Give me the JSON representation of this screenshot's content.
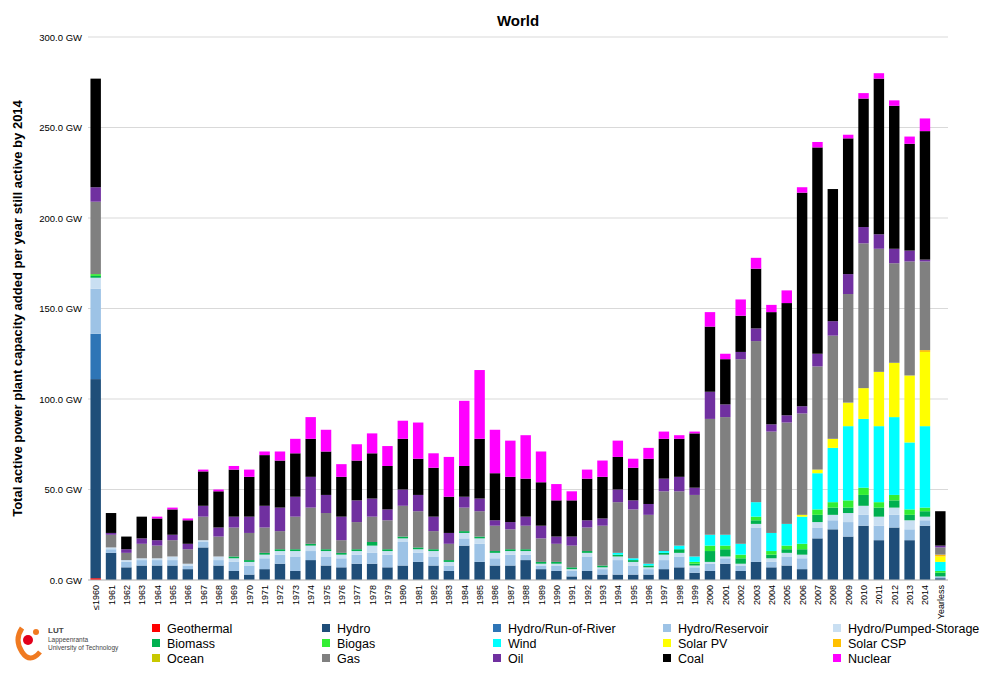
{
  "chart_data": {
    "type": "bar",
    "stacked": true,
    "grid": true,
    "legend": "bottom",
    "title": "World",
    "y_label": "Total active power plant capacity added per year still active by 2014",
    "ylim": [
      0,
      300
    ],
    "yticks": [
      {
        "value": 0,
        "label": "0.0 GW"
      },
      {
        "value": 50,
        "label": "50.0 GW"
      },
      {
        "value": 100,
        "label": "100.0 GW"
      },
      {
        "value": 150,
        "label": "150.0 GW"
      },
      {
        "value": 200,
        "label": "200.0 GW"
      },
      {
        "value": 250,
        "label": "250.0 GW"
      },
      {
        "value": 300,
        "label": "300.0 GW"
      }
    ],
    "categories": [
      "≤1960",
      "1961",
      "1962",
      "1963",
      "1964",
      "1965",
      "1966",
      "1967",
      "1968",
      "1969",
      "1970",
      "1971",
      "1972",
      "1973",
      "1974",
      "1975",
      "1976",
      "1977",
      "1978",
      "1979",
      "1980",
      "1981",
      "1982",
      "1983",
      "1984",
      "1985",
      "1986",
      "1987",
      "1988",
      "1989",
      "1990",
      "1991",
      "1992",
      "1993",
      "1994",
      "1995",
      "1996",
      "1997",
      "1998",
      "1999",
      "2000",
      "2001",
      "2002",
      "2003",
      "2004",
      "2005",
      "2006",
      "2007",
      "2008",
      "2009",
      "2010",
      "2011",
      "2012",
      "2013",
      "2014",
      "Yearless"
    ],
    "series": [
      {
        "name": "Geothermal",
        "color": "#ff0000",
        "values": [
          1,
          0,
          0,
          0,
          0,
          0,
          0,
          0,
          0,
          0,
          0,
          0,
          0,
          0,
          0,
          0,
          0,
          0,
          0,
          0,
          0,
          0,
          0,
          0,
          0,
          0,
          0,
          0,
          0,
          0,
          0,
          0,
          0,
          0,
          0,
          0,
          0,
          0,
          0,
          0,
          0,
          0,
          0,
          0,
          0,
          0,
          0,
          0,
          0,
          0,
          0,
          0,
          0,
          0,
          0,
          0
        ]
      },
      {
        "name": "Hydro",
        "color": "#1f4e79",
        "values": [
          110,
          15,
          7,
          8,
          8,
          8,
          6,
          18,
          8,
          5,
          3,
          6,
          9,
          5,
          11,
          8,
          7,
          9,
          9,
          7,
          8,
          10,
          8,
          5,
          19,
          10,
          8,
          8,
          11,
          6,
          5,
          2,
          5,
          3,
          3,
          3,
          3,
          6,
          7,
          4,
          5,
          9,
          5,
          10,
          7,
          8,
          6,
          23,
          28,
          24,
          30,
          22,
          29,
          22,
          30,
          1
        ]
      },
      {
        "name": "Hydro/Run-of-River",
        "color": "#2e75b6",
        "values": [
          25,
          0,
          0,
          0,
          0,
          0,
          0,
          0,
          0,
          0,
          0,
          0,
          0,
          0,
          0,
          0,
          0,
          0,
          0,
          0,
          0,
          0,
          0,
          0,
          0,
          0,
          0,
          0,
          0,
          0,
          0,
          0,
          0,
          0,
          0,
          0,
          0,
          0,
          0,
          0,
          0,
          0,
          0,
          0,
          0,
          0,
          0,
          0,
          0,
          0,
          0,
          0,
          0,
          0,
          0,
          0
        ]
      },
      {
        "name": "Hydro/Reservoir",
        "color": "#9dc3e6",
        "values": [
          25,
          2,
          3,
          3,
          3,
          3,
          2,
          3,
          3,
          5,
          5,
          6,
          5,
          8,
          5,
          5,
          5,
          5,
          6,
          7,
          13,
          5,
          5,
          3,
          4,
          10,
          4,
          6,
          3,
          2,
          3,
          3,
          8,
          3,
          8,
          5,
          3,
          5,
          6,
          3,
          4,
          3,
          3,
          19,
          3,
          5,
          6,
          6,
          5,
          8,
          6,
          8,
          7,
          6,
          3,
          1
        ]
      },
      {
        "name": "Hydro/Pumped-Storage",
        "color": "#c9dff2",
        "values": [
          6,
          1,
          1,
          1,
          1,
          2,
          1,
          1,
          2,
          2,
          2,
          2,
          2,
          3,
          3,
          3,
          2,
          2,
          4,
          2,
          2,
          2,
          3,
          2,
          3,
          3,
          3,
          2,
          2,
          1,
          1,
          1,
          2,
          1,
          2,
          2,
          1,
          3,
          2,
          1,
          1,
          1,
          1,
          2,
          2,
          2,
          2,
          3,
          3,
          5,
          5,
          5,
          4,
          5,
          2,
          0
        ]
      },
      {
        "name": "Biomass",
        "color": "#00b050",
        "values": [
          1,
          0,
          0,
          0,
          0,
          0,
          0,
          0,
          0,
          1,
          1,
          1,
          1,
          1,
          1,
          1,
          1,
          1,
          2,
          1,
          1,
          1,
          1,
          1,
          1,
          1,
          1,
          1,
          1,
          1,
          1,
          1,
          1,
          1,
          1,
          1,
          1,
          1,
          2,
          1,
          6,
          4,
          3,
          2,
          2,
          2,
          3,
          4,
          4,
          3,
          6,
          5,
          4,
          3,
          3,
          2
        ]
      },
      {
        "name": "Biogas",
        "color": "#33ee33",
        "values": [
          1,
          0,
          0,
          0,
          0,
          0,
          0,
          0,
          0,
          0,
          0,
          0,
          0,
          0,
          0,
          0,
          0,
          0,
          0,
          0,
          0,
          0,
          0,
          0,
          0,
          0,
          0,
          0,
          0,
          0,
          0,
          0,
          0,
          0,
          0,
          0,
          0,
          0,
          0,
          1,
          3,
          2,
          2,
          2,
          2,
          2,
          3,
          3,
          3,
          4,
          4,
          3,
          3,
          3,
          2,
          1
        ]
      },
      {
        "name": "Wind",
        "color": "#00ffff",
        "values": [
          0,
          0,
          0,
          0,
          0,
          0,
          0,
          0,
          0,
          0,
          0,
          0,
          0,
          0,
          0,
          0,
          0,
          0,
          0,
          0,
          0,
          0,
          0,
          0,
          0,
          0,
          0,
          0,
          0,
          0,
          0,
          0,
          0,
          0,
          1,
          1,
          1,
          1,
          2,
          3,
          6,
          6,
          6,
          8,
          10,
          12,
          15,
          20,
          30,
          41,
          38,
          42,
          43,
          37,
          45,
          5
        ]
      },
      {
        "name": "Solar PV",
        "color": "#ffff00",
        "values": [
          0,
          0,
          0,
          0,
          0,
          0,
          0,
          0,
          0,
          0,
          0,
          0,
          0,
          0,
          0,
          0,
          0,
          0,
          0,
          0,
          0,
          0,
          0,
          0,
          0,
          0,
          0,
          0,
          0,
          0,
          0,
          0,
          0,
          0,
          0,
          0,
          0,
          0,
          0,
          0,
          0,
          0,
          0,
          0,
          0,
          0,
          1,
          2,
          5,
          13,
          17,
          30,
          30,
          37,
          41,
          3
        ]
      },
      {
        "name": "Solar CSP",
        "color": "#ffc000",
        "values": [
          0,
          0,
          0,
          0,
          0,
          0,
          0,
          0,
          0,
          0,
          0,
          0,
          0,
          0,
          0,
          0,
          0,
          0,
          0,
          0,
          0,
          0,
          0,
          0,
          0,
          0,
          0,
          0,
          0,
          0,
          0,
          0,
          0,
          0,
          0,
          0,
          0,
          0,
          0,
          0,
          0,
          0,
          0,
          0,
          0,
          0,
          0,
          0,
          0,
          0,
          0,
          0,
          0,
          0,
          1,
          1
        ]
      },
      {
        "name": "Ocean",
        "color": "#c8c800",
        "values": [
          0,
          0,
          0,
          0,
          0,
          0,
          0,
          0,
          0,
          0,
          0,
          0,
          0,
          0,
          0,
          0,
          0,
          0,
          0,
          0,
          0,
          0,
          0,
          0,
          0,
          0,
          0,
          0,
          0,
          0,
          0,
          0,
          0,
          0,
          0,
          0,
          0,
          0,
          0,
          0,
          0,
          0,
          0,
          0,
          0,
          0,
          0,
          0,
          0,
          0,
          0,
          0,
          0,
          0,
          0,
          0
        ]
      },
      {
        "name": "Gas",
        "color": "#808080",
        "values": [
          40,
          7,
          4,
          8,
          7,
          9,
          8,
          13,
          11,
          16,
          15,
          14,
          10,
          18,
          20,
          20,
          7,
          15,
          14,
          16,
          17,
          20,
          10,
          9,
          13,
          14,
          14,
          11,
          13,
          13,
          10,
          12,
          13,
          22,
          28,
          27,
          27,
          33,
          30,
          34,
          64,
          65,
          102,
          89,
          56,
          56,
          56,
          57,
          57,
          60,
          80,
          68,
          55,
          63,
          49,
          4
        ]
      },
      {
        "name": "Oil",
        "color": "#7030a0",
        "values": [
          8,
          1,
          2,
          3,
          3,
          3,
          3,
          6,
          5,
          6,
          9,
          12,
          13,
          11,
          17,
          10,
          13,
          12,
          10,
          6,
          9,
          9,
          8,
          6,
          6,
          7,
          3,
          4,
          5,
          7,
          4,
          5,
          4,
          4,
          7,
          5,
          6,
          7,
          8,
          4,
          15,
          7,
          4,
          7,
          4,
          4,
          4,
          7,
          8,
          11,
          9,
          8,
          8,
          6,
          1,
          1
        ]
      },
      {
        "name": "Coal",
        "color": "#000000",
        "values": [
          60,
          11,
          7,
          12,
          12,
          14,
          13,
          19,
          20,
          26,
          22,
          28,
          26,
          24,
          21,
          24,
          22,
          22,
          25,
          24,
          28,
          20,
          27,
          20,
          17,
          33,
          26,
          25,
          21,
          24,
          20,
          20,
          23,
          23,
          18,
          18,
          25,
          22,
          21,
          30,
          36,
          25,
          20,
          33,
          62,
          62,
          118,
          114,
          73,
          75,
          71,
          86,
          79,
          59,
          71,
          19
        ]
      },
      {
        "name": "Nuclear",
        "color": "#ff00ff",
        "values": [
          0,
          0,
          0,
          0,
          1,
          1,
          1,
          1,
          1,
          2,
          4,
          2,
          5,
          8,
          12,
          12,
          7,
          9,
          11,
          11,
          10,
          20,
          8,
          22,
          36,
          38,
          24,
          20,
          24,
          17,
          9,
          5,
          5,
          9,
          9,
          5,
          6,
          4,
          2,
          1,
          8,
          3,
          9,
          6,
          4,
          7,
          3,
          3,
          0,
          2,
          3,
          3,
          3,
          4,
          7,
          0
        ]
      }
    ]
  },
  "logo": {
    "texts": [
      "LUT",
      "Lappeenranta",
      "University of Technology"
    ]
  }
}
